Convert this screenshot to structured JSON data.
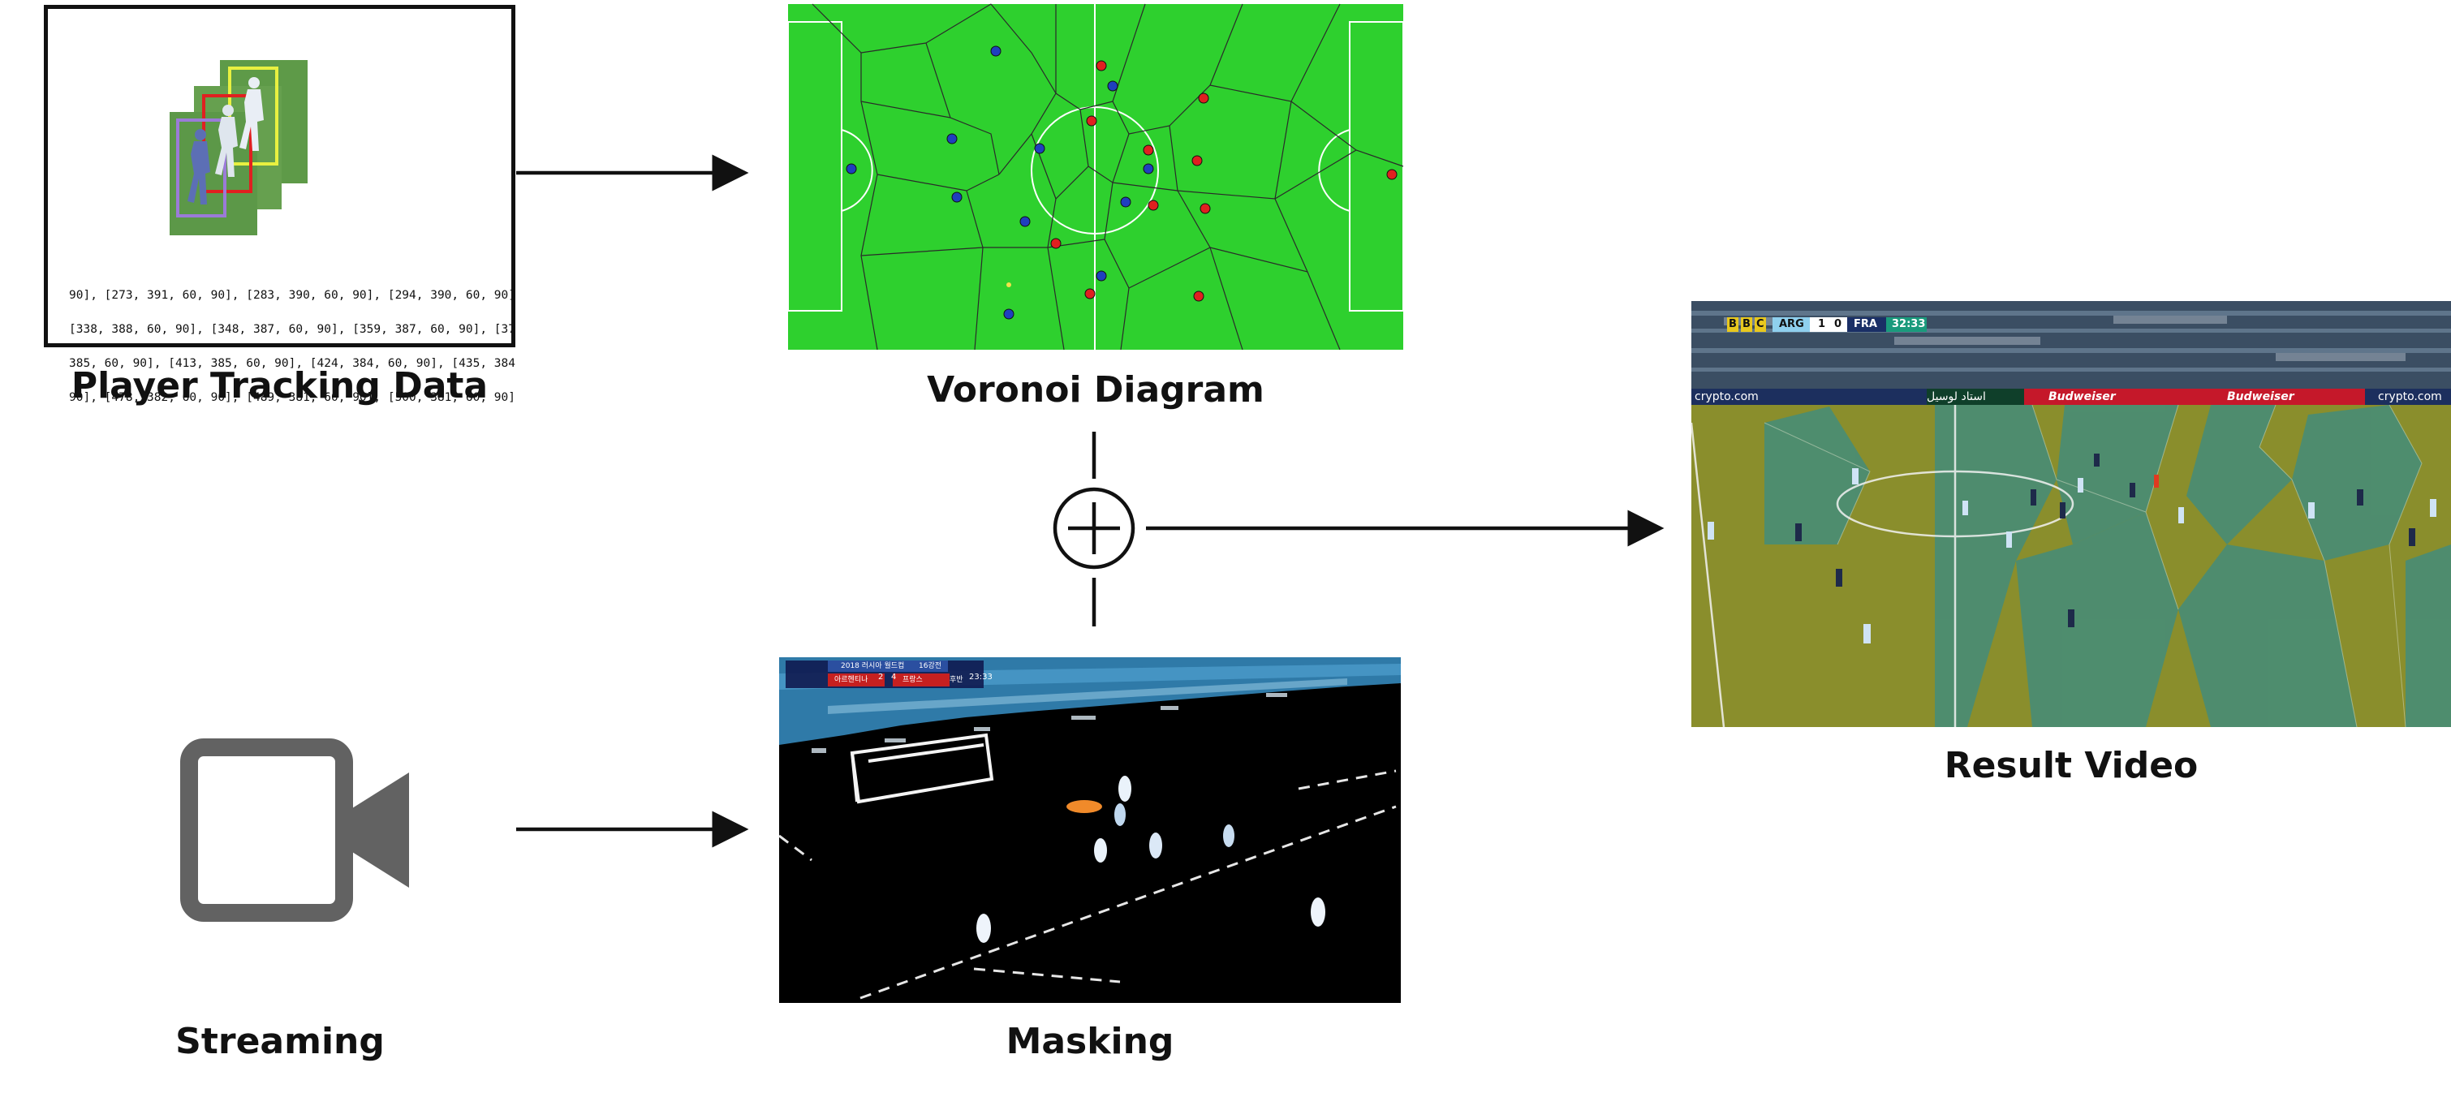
{
  "labels": {
    "player_tracking": "Player Tracking Data",
    "voronoi": "Voronoi Diagram",
    "result": "Result Video",
    "streaming": "Streaming",
    "masking": "Masking"
  },
  "tracking_lines": [
    "90], [273, 391, 60, 90], [283, 390, 60, 90], [294, 390, 60, 90]",
    "[338, 388, 60, 90], [348, 387, 60, 90], [359, 387, 60, 90], [37",
    "385, 60, 90], [413, 385, 60, 90], [424, 384, 60, 90], [435, 384",
    "90], [478, 382, 60, 90], [489, 381, 60, 90], [500, 381, 60, 90]"
  ],
  "masking_scoreboard": {
    "title": "2018 러시아 월드컵",
    "stage": "16강전",
    "home": "아르헨티나",
    "home_score": "2",
    "away_score": "4",
    "away": "프랑스",
    "period": "후반",
    "clock": "23:33"
  },
  "result_scoreboard": {
    "broadcaster": [
      "B",
      "B",
      "C"
    ],
    "home": "ARG",
    "home_score": "1",
    "away_score": "0",
    "away": "FRA",
    "clock": "32:33"
  },
  "result_boards": {
    "sponsor1": "crypto.com",
    "sponsor2": "Budweiser",
    "stadium": "استاد لوسيل"
  },
  "colors": {
    "pitch_green": "#2ed02e",
    "team_red": "#e02020",
    "team_blue": "#1f3fbf",
    "icon_grey": "#626262",
    "arrow": "#111111"
  },
  "icons": {
    "combine": "circled-plus-icon",
    "streaming": "video-camera-icon"
  }
}
